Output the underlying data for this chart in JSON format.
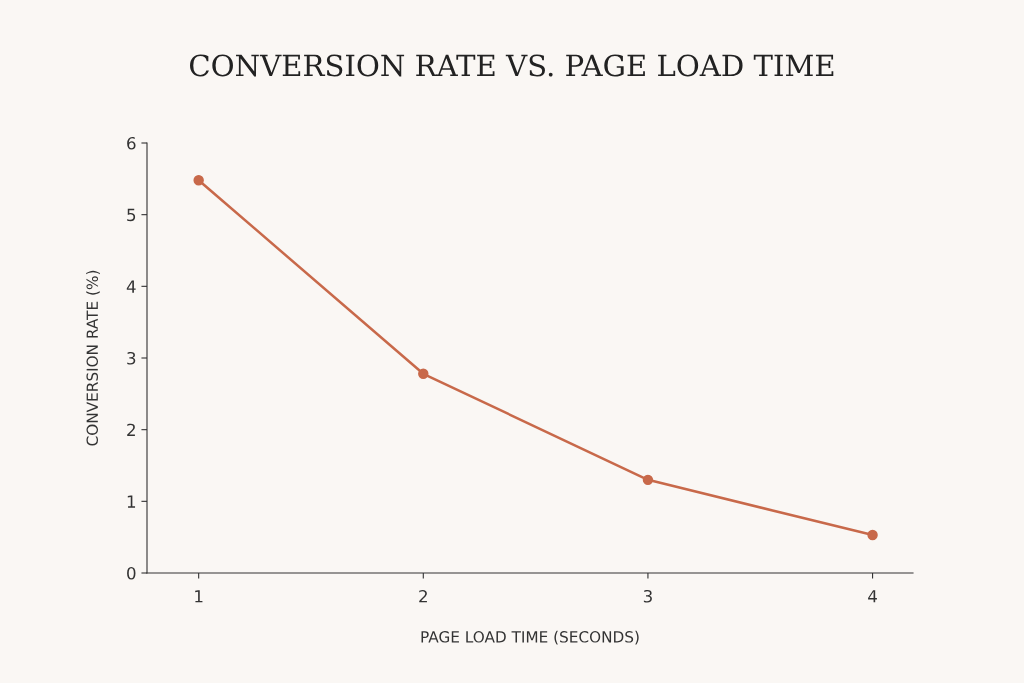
{
  "chart_data": {
    "type": "line",
    "title": "CONVERSION RATE VS. PAGE LOAD TIME",
    "xlabel": "PAGE LOAD TIME (SECONDS)",
    "ylabel": "CONVERSION RATE (%)",
    "x": [
      1,
      2,
      3,
      4
    ],
    "series": [
      {
        "color": "#c8694a",
        "values": [
          5.48,
          2.78,
          1.3,
          0.53
        ]
      }
    ],
    "xlim": [
      0.77,
      4.18
    ],
    "xticks": [
      1,
      2,
      3,
      4
    ],
    "ylim": [
      0,
      6
    ],
    "yticks": [
      0,
      1,
      2,
      3,
      4,
      5,
      6
    ],
    "grid": false,
    "legend": false,
    "marker": "circle",
    "line_style": "solid"
  }
}
